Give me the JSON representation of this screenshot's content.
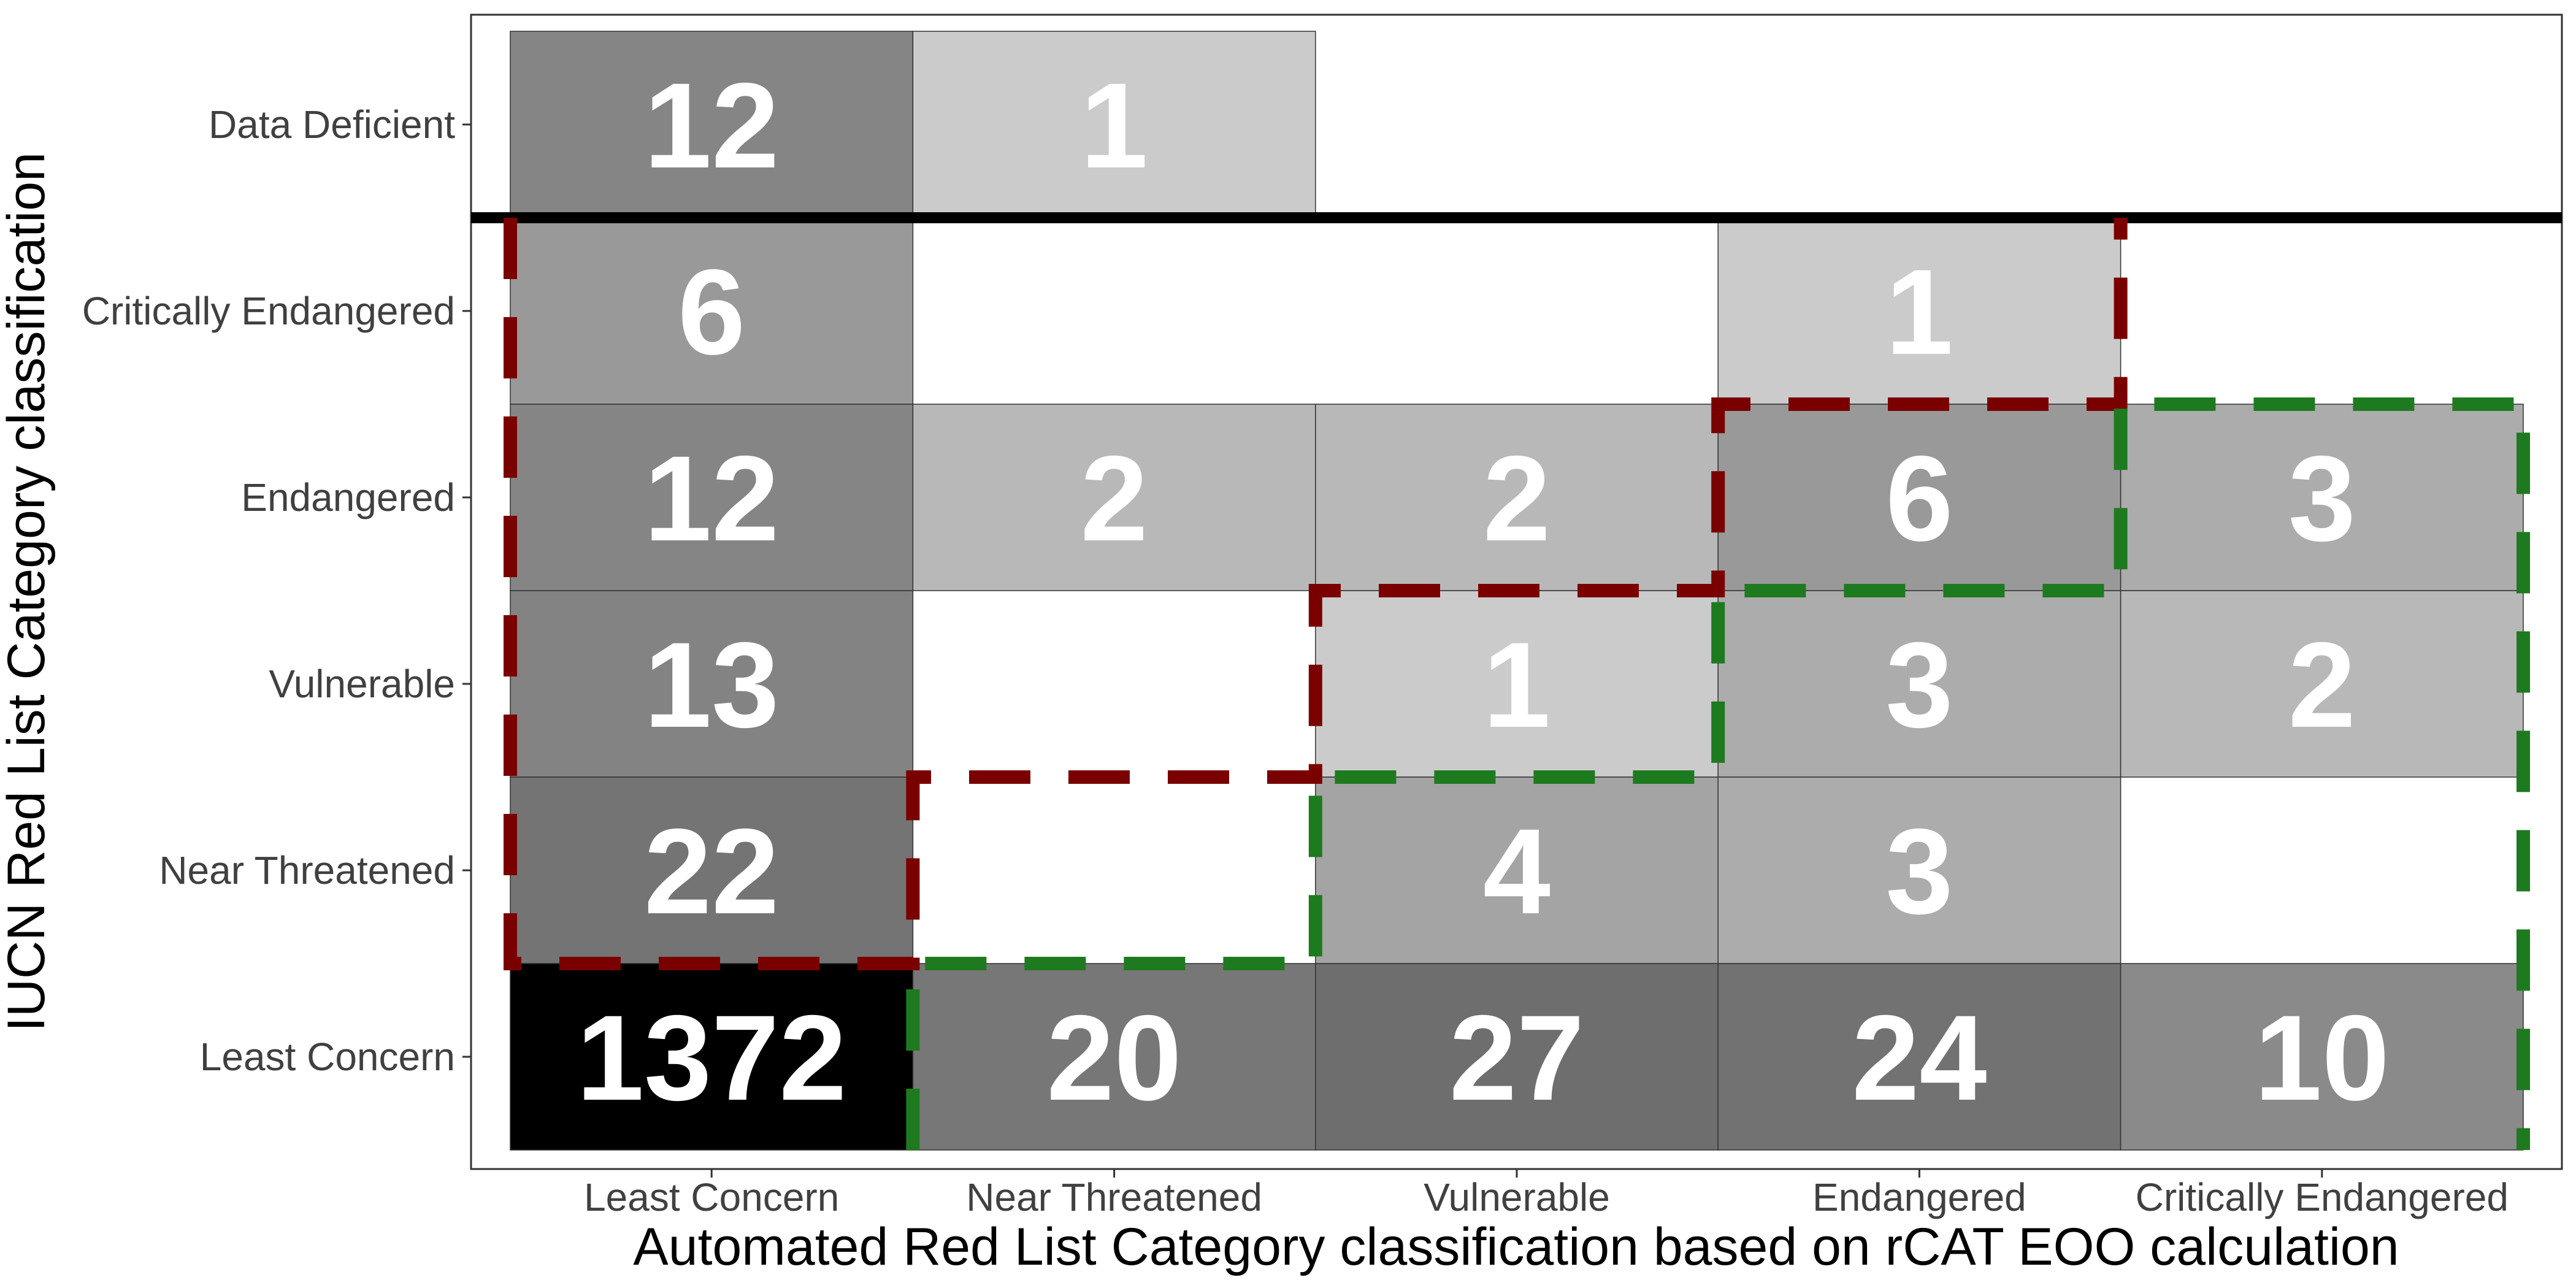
{
  "chart_data": {
    "type": "heatmap",
    "title": "",
    "xlabel": "Automated Red List Category classification based on rCAT EOO calculation",
    "ylabel": "IUCN Red List Category classification",
    "x_categories": [
      "Least Concern",
      "Near Threatened",
      "Vulnerable",
      "Endangered",
      "Critically Endangered"
    ],
    "y_categories": [
      "Least Concern",
      "Near Threatened",
      "Vulnerable",
      "Endangered",
      "Critically Endangered",
      "Data Deficient"
    ],
    "cells": [
      {
        "x": "Least Concern",
        "y": "Data Deficient",
        "value": 12,
        "label": "12"
      },
      {
        "x": "Near Threatened",
        "y": "Data Deficient",
        "value": 1,
        "label": "1"
      },
      {
        "x": "Least Concern",
        "y": "Critically Endangered",
        "value": 6,
        "label": "6"
      },
      {
        "x": "Endangered",
        "y": "Critically Endangered",
        "value": 1,
        "label": "1"
      },
      {
        "x": "Least Concern",
        "y": "Endangered",
        "value": 12,
        "label": "12"
      },
      {
        "x": "Near Threatened",
        "y": "Endangered",
        "value": 2,
        "label": "2"
      },
      {
        "x": "Vulnerable",
        "y": "Endangered",
        "value": 2,
        "label": "2"
      },
      {
        "x": "Endangered",
        "y": "Endangered",
        "value": 6,
        "label": "6"
      },
      {
        "x": "Critically Endangered",
        "y": "Endangered",
        "value": 3,
        "label": "3"
      },
      {
        "x": "Least Concern",
        "y": "Vulnerable",
        "value": 13,
        "label": "13"
      },
      {
        "x": "Vulnerable",
        "y": "Vulnerable",
        "value": 1,
        "label": "1"
      },
      {
        "x": "Endangered",
        "y": "Vulnerable",
        "value": 3,
        "label": "3"
      },
      {
        "x": "Critically Endangered",
        "y": "Vulnerable",
        "value": 2,
        "label": "2"
      },
      {
        "x": "Least Concern",
        "y": "Near Threatened",
        "value": 22,
        "label": "22"
      },
      {
        "x": "Vulnerable",
        "y": "Near Threatened",
        "value": 4,
        "label": "4"
      },
      {
        "x": "Endangered",
        "y": "Near Threatened",
        "value": 3,
        "label": "3"
      },
      {
        "x": "Least Concern",
        "y": "Least Concern",
        "value": 1372,
        "label": "1372"
      },
      {
        "x": "Near Threatened",
        "y": "Least Concern",
        "value": 20,
        "label": "20"
      },
      {
        "x": "Vulnerable",
        "y": "Least Concern",
        "value": 27,
        "label": "27"
      },
      {
        "x": "Endangered",
        "y": "Least Concern",
        "value": 24,
        "label": "24"
      },
      {
        "x": "Critically Endangered",
        "y": "Least Concern",
        "value": 10,
        "label": "10"
      }
    ],
    "color_scale": {
      "type": "log-grey",
      "low": "#cbcbcb",
      "high": "#000000"
    },
    "separator_line": {
      "between_rows": [
        "Critically Endangered",
        "Data Deficient"
      ],
      "color": "#000000"
    },
    "outlines": [
      {
        "name": "red-dashed-outline",
        "color": "#7a0000",
        "style": "dashed",
        "path": [
          [
            "Least Concern",
            "Least Concern"
          ],
          [
            "Near Threatened",
            "Least Concern"
          ],
          [
            "Near Threatened",
            "Near Threatened"
          ],
          [
            "Vulnerable",
            "Near Threatened"
          ],
          [
            "Vulnerable",
            "Vulnerable"
          ],
          [
            "Endangered",
            "Vulnerable"
          ],
          [
            "Endangered",
            "Endangered"
          ],
          [
            "Critically Endangered",
            "Endangered"
          ],
          [
            "Critically Endangered",
            "Critically Endangered"
          ],
          [
            "Least Concern",
            "Critically Endangered"
          ]
        ]
      },
      {
        "name": "green-dashed-outline",
        "color": "#1e7a1e",
        "style": "dashed",
        "path": [
          [
            "Near Threatened",
            "Least Concern"
          ],
          [
            "Vulnerable",
            "Least Concern"
          ],
          [
            "Vulnerable",
            "Near Threatened"
          ],
          [
            "Endangered",
            "Near Threatened"
          ],
          [
            "Endangered",
            "Vulnerable"
          ],
          [
            "Critically Endangered",
            "Vulnerable"
          ],
          [
            "Critically Endangered",
            "Endangered"
          ],
          [
            "Critically Endangered+",
            "Endangered"
          ],
          [
            "Critically Endangered+",
            "Least Concern"
          ]
        ]
      }
    ],
    "grid": false,
    "legend": "none"
  }
}
